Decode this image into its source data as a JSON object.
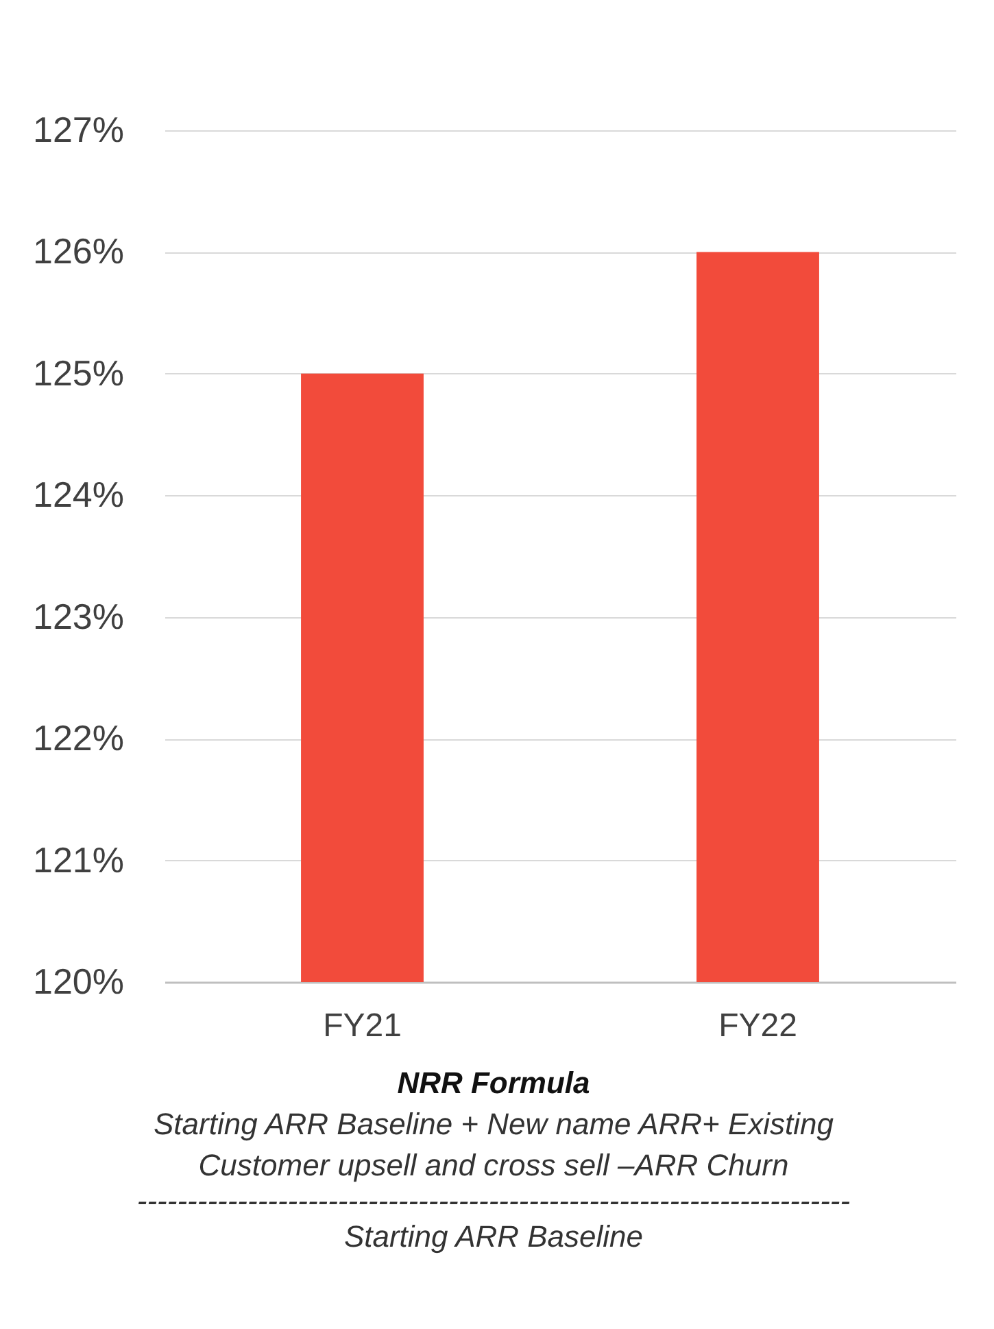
{
  "chart_data": {
    "type": "bar",
    "categories": [
      "FY21",
      "FY22"
    ],
    "values": [
      125,
      126
    ],
    "color": "#f24b3b",
    "ylim": [
      120,
      127
    ],
    "yticks": [
      {
        "value": 120,
        "label": "120%"
      },
      {
        "value": 121,
        "label": "121%"
      },
      {
        "value": 122,
        "label": "122%"
      },
      {
        "value": 123,
        "label": "123%"
      },
      {
        "value": 124,
        "label": "124%"
      },
      {
        "value": 125,
        "label": "125%"
      },
      {
        "value": 126,
        "label": "126%"
      },
      {
        "value": 127,
        "label": "127%"
      }
    ],
    "grid": "y",
    "annotations": [
      "NRR Formula",
      "Starting ARR Baseline + New name ARR+ Existing Customer upsell and cross sell –ARR Churn",
      "-----------------------------------------------------------------------",
      "Starting ARR Baseline"
    ]
  }
}
